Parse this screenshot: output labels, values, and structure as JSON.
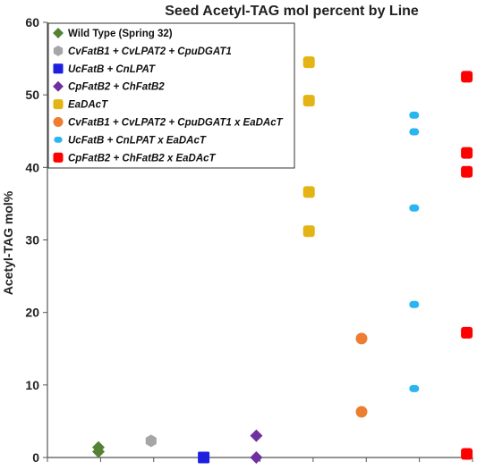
{
  "chart_data": {
    "type": "scatter",
    "title": "Seed Acetyl-TAG mol percent by Line",
    "xlabel": "",
    "ylabel": "Acetyl-TAG mol%",
    "ylim": [
      0,
      60
    ],
    "yticks": [
      0,
      10,
      20,
      30,
      40,
      50,
      60
    ],
    "grid": false,
    "legend_position": "top-left",
    "series": [
      {
        "name": "Wild Type (Spring 32)",
        "marker": "diamond",
        "color": "#548235",
        "italic": false,
        "x": 1,
        "values": [
          0.8,
          1.4
        ]
      },
      {
        "name": "CvFatB1 + CvLPAT2 + CpuDGAT1",
        "marker": "hexagon",
        "color": "#a6a6a6",
        "italic": true,
        "x": 2,
        "values": [
          2.3
        ]
      },
      {
        "name": "UcFatB + CnLPAT",
        "marker": "square",
        "color": "#1f1fe0",
        "italic": true,
        "x": 3,
        "values": [
          0.0
        ]
      },
      {
        "name": "CpFatB2 + ChFatB2",
        "marker": "diamond",
        "color": "#7030a0",
        "italic": true,
        "x": 4,
        "values": [
          0.0,
          3.0
        ]
      },
      {
        "name": "EaDAcT",
        "marker": "rounded-square",
        "color": "#e4b414",
        "italic": true,
        "x": 5,
        "values": [
          54.5,
          49.2,
          36.6,
          31.2
        ]
      },
      {
        "name": "CvFatB1 + CvLPAT2 + CpuDGAT1 x EaDAcT",
        "marker": "circle",
        "color": "#ed7d31",
        "italic": true,
        "x": 6,
        "values": [
          16.4,
          6.3
        ]
      },
      {
        "name": "UcFatB + CnLPAT x EaDAcT",
        "marker": "pill",
        "color": "#29b6f0",
        "italic": true,
        "x": 7,
        "values": [
          47.2,
          44.9,
          34.4,
          21.1,
          9.5
        ]
      },
      {
        "name": "CpFatB2 + ChFatB2 x EaDAcT",
        "marker": "rounded-square",
        "color": "#ff0000",
        "italic": true,
        "x": 8,
        "values": [
          52.5,
          42.0,
          39.4,
          17.2,
          0.5
        ]
      }
    ]
  }
}
